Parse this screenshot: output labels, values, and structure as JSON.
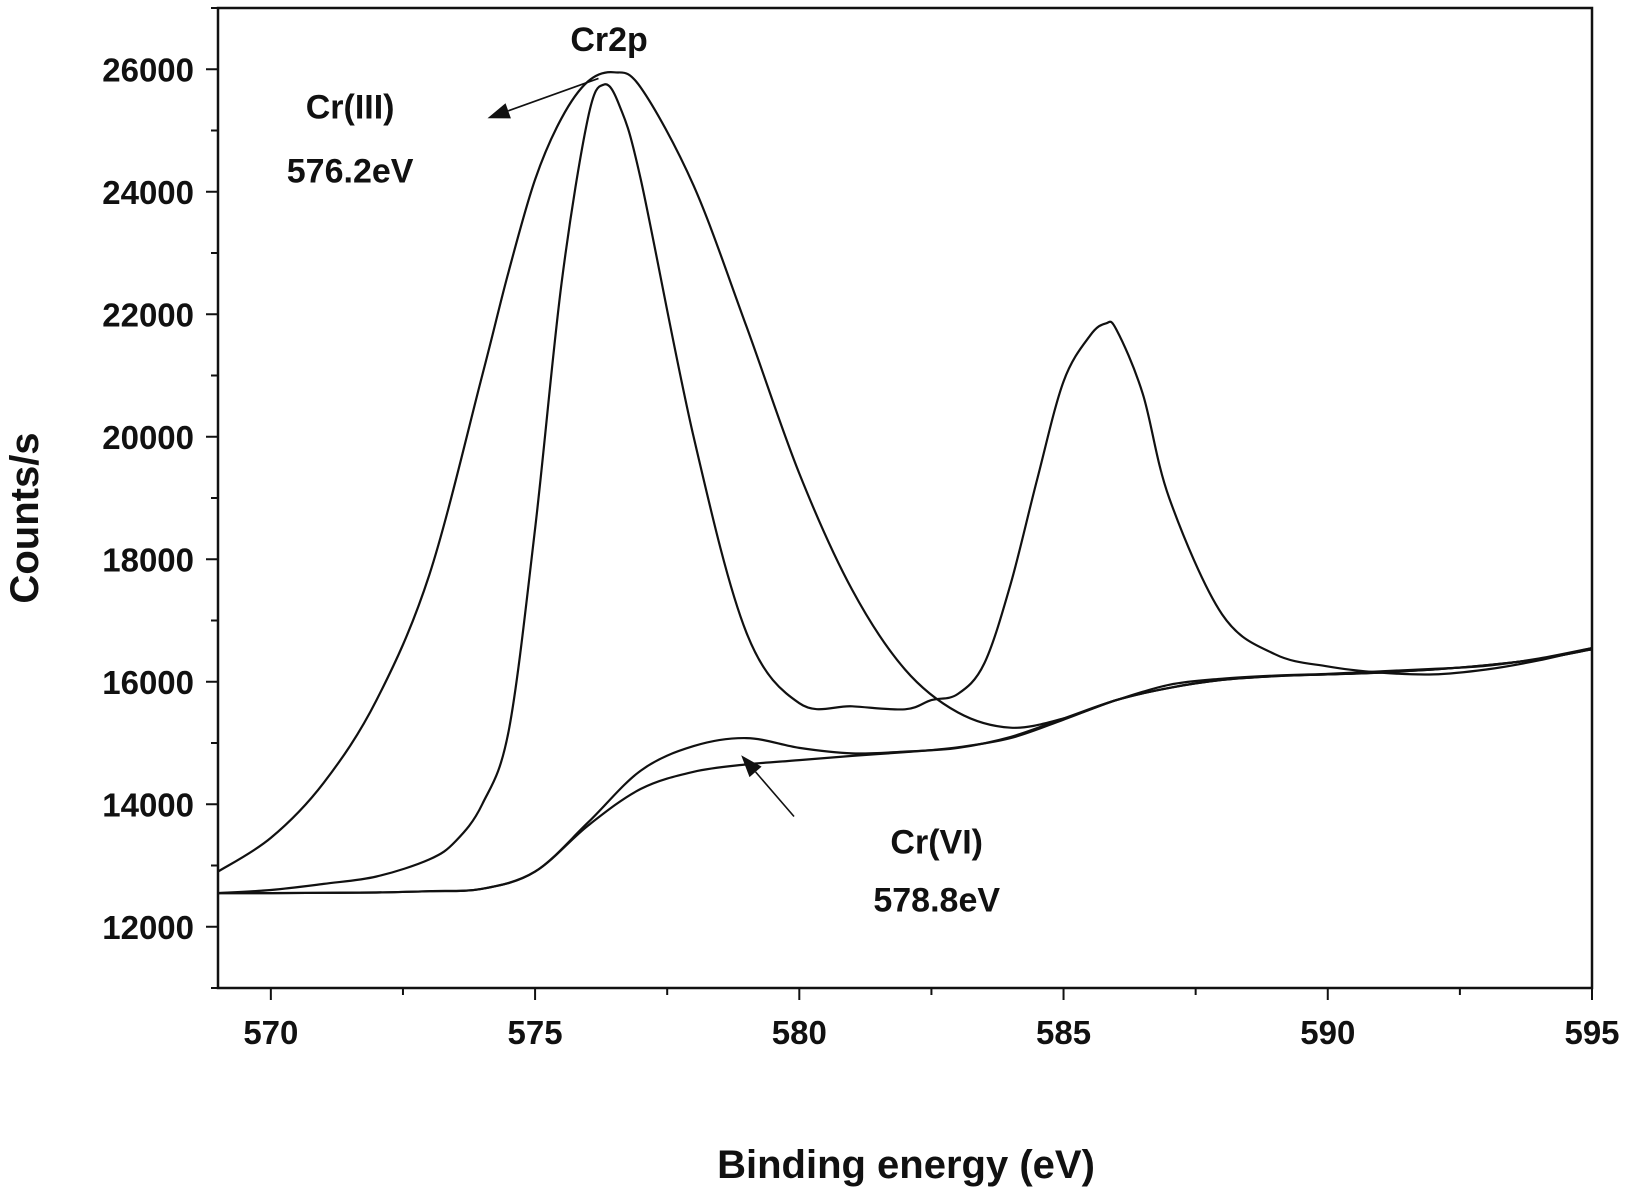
{
  "chart_data": {
    "type": "line",
    "title": "",
    "xlabel": "Binding energy (eV)",
    "ylabel": "Counts/s",
    "xlim": [
      569,
      595
    ],
    "ylim": [
      11000,
      27000
    ],
    "x_ticks": [
      570,
      575,
      580,
      585,
      590,
      595
    ],
    "y_ticks": [
      12000,
      14000,
      16000,
      18000,
      20000,
      22000,
      24000,
      26000
    ],
    "grid": false,
    "legend": "none",
    "series": [
      {
        "x": [
          569,
          570,
          571,
          572,
          573,
          574,
          574.5,
          575,
          575.5,
          576,
          576.5,
          577,
          578,
          579,
          580,
          581,
          582,
          583,
          584,
          585,
          586,
          587,
          588,
          589,
          590,
          591,
          592,
          593,
          594,
          595
        ],
        "values": [
          12900,
          13450,
          14350,
          15700,
          17750,
          21000,
          22700,
          24200,
          25200,
          25800,
          25950,
          25700,
          24100,
          21800,
          19400,
          17500,
          16200,
          15500,
          15250,
          15400,
          15700,
          15950,
          16050,
          16100,
          16130,
          16170,
          16210,
          16260,
          16380,
          16550
        ]
      },
      {
        "x": [
          569,
          570,
          571,
          572,
          573,
          573.5,
          574,
          574.5,
          575,
          575.5,
          576,
          576.3,
          576.6,
          577,
          578,
          579,
          580,
          581,
          582,
          582.5,
          583,
          583.5,
          584,
          584.5,
          585,
          585.5,
          585.8,
          586,
          586.5,
          587,
          588,
          589,
          590,
          591,
          592,
          593,
          594,
          595
        ],
        "values": [
          12550,
          12600,
          12700,
          12820,
          13100,
          13400,
          14000,
          15200,
          18500,
          22500,
          25200,
          25750,
          25400,
          24200,
          20000,
          16800,
          15650,
          15600,
          15550,
          15700,
          15800,
          16300,
          17600,
          19300,
          20900,
          21650,
          21850,
          21750,
          20700,
          19000,
          17100,
          16450,
          16250,
          16150,
          16120,
          16200,
          16350,
          16550
        ]
      },
      {
        "x": [
          569,
          570,
          571,
          572,
          573,
          574,
          575,
          576,
          577,
          578,
          579,
          580,
          581,
          582,
          583,
          584,
          585,
          586,
          587,
          588,
          589,
          590,
          591,
          592,
          593,
          594,
          595
        ],
        "values": [
          12550,
          12550,
          12555,
          12560,
          12580,
          12620,
          12900,
          13700,
          14550,
          14950,
          15080,
          14920,
          14830,
          14860,
          14920,
          15100,
          15400,
          15700,
          15900,
          16030,
          16090,
          16120,
          16150,
          16200,
          16270,
          16370,
          16530
        ]
      },
      {
        "x": [
          569,
          570,
          571,
          572,
          573,
          574,
          575,
          576,
          577,
          578,
          579,
          580,
          581,
          582,
          583,
          584,
          585,
          586,
          587,
          588,
          589,
          590,
          591,
          592,
          593,
          594,
          595
        ],
        "values": [
          12550,
          12550,
          12555,
          12560,
          12580,
          12620,
          12900,
          13650,
          14250,
          14530,
          14650,
          14720,
          14790,
          14850,
          14930,
          15080,
          15380,
          15700,
          15900,
          16030,
          16090,
          16120,
          16150,
          16200,
          16270,
          16370,
          16530
        ]
      }
    ],
    "annotations": [
      {
        "text": "Cr2p",
        "x": 576.4,
        "y": 26300
      },
      {
        "text": "Cr(III)",
        "x": 571.5,
        "y": 25200
      },
      {
        "text": "576.2eV",
        "x": 571.5,
        "y": 24150
      },
      {
        "text": "Cr(VI)",
        "x": 582.6,
        "y": 13200
      },
      {
        "text": "578.8eV",
        "x": 582.6,
        "y": 12250
      }
    ],
    "arrows": [
      {
        "from": [
          576.2,
          25850
        ],
        "to": [
          574.1,
          25200
        ]
      },
      {
        "from": [
          579.9,
          13800
        ],
        "to": [
          578.9,
          14800
        ]
      }
    ]
  }
}
